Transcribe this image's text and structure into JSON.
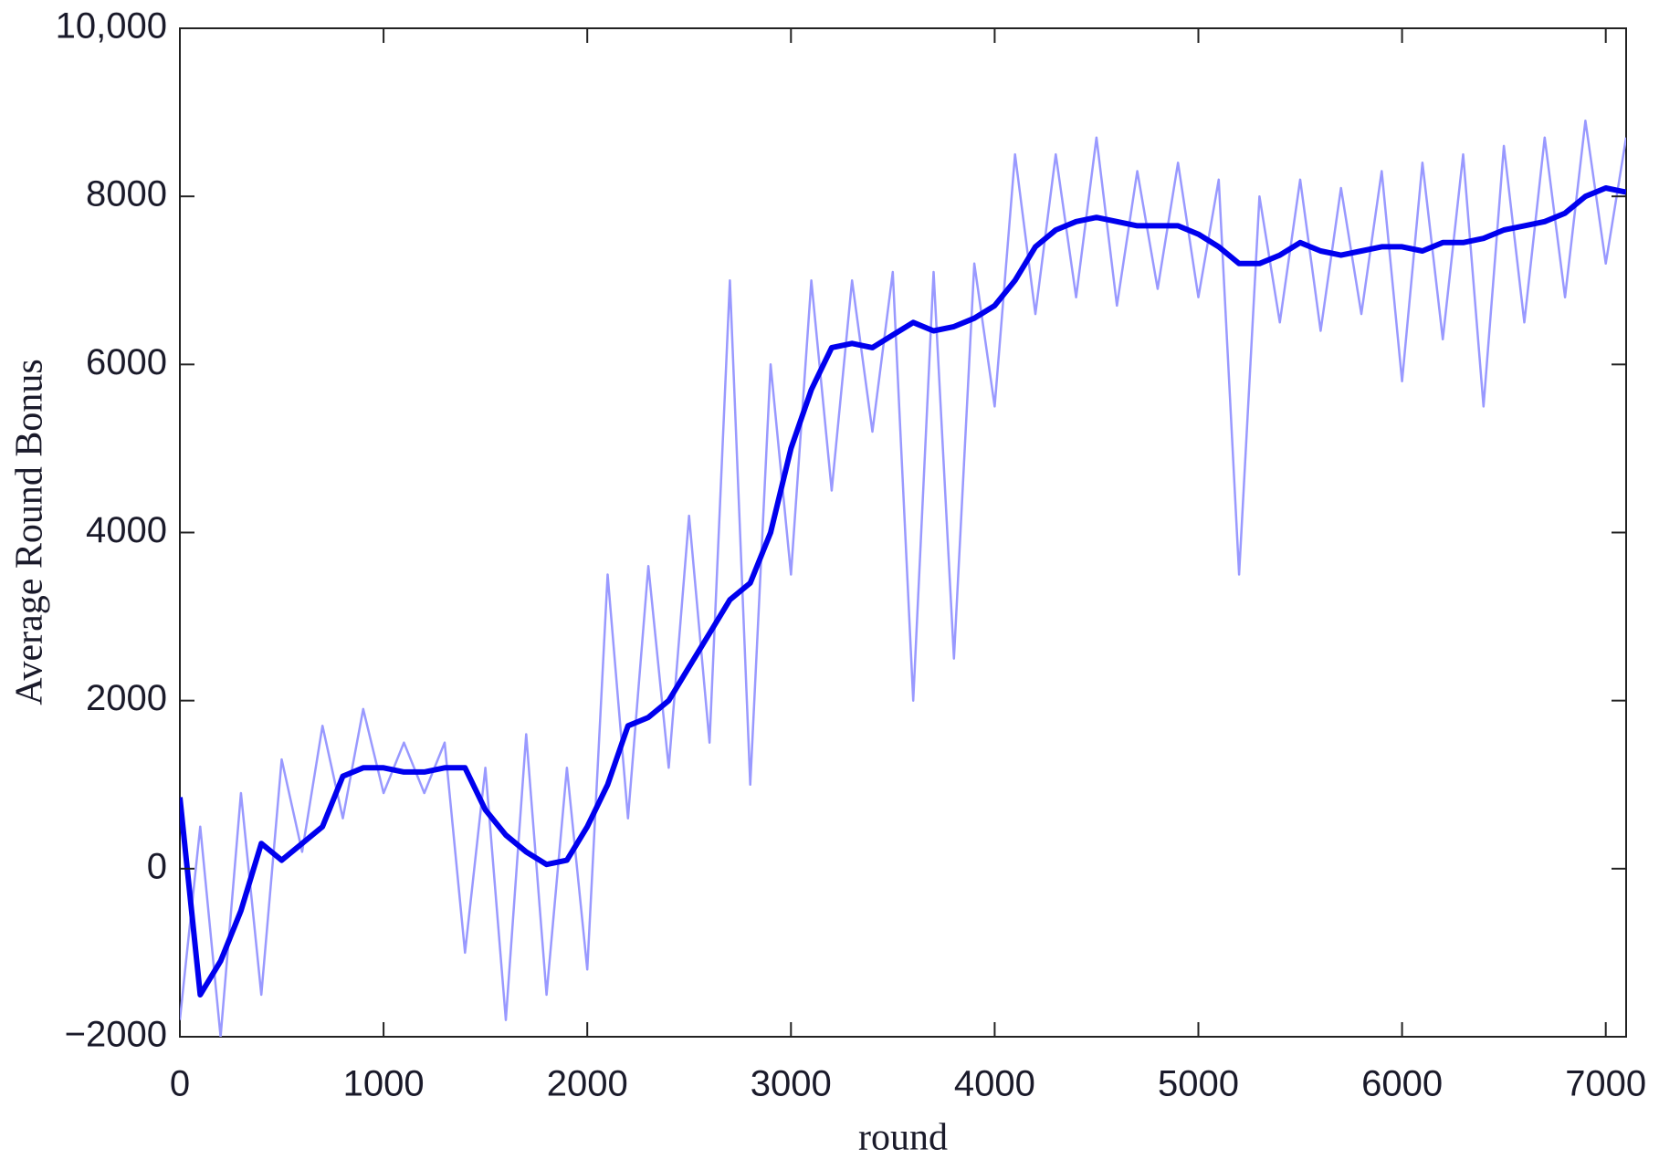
{
  "chart_data": {
    "type": "line",
    "xlabel": "round",
    "ylabel": "Average Round Bonus",
    "x": [
      0,
      100,
      200,
      300,
      400,
      500,
      600,
      700,
      800,
      900,
      1000,
      1100,
      1200,
      1300,
      1400,
      1500,
      1600,
      1700,
      1800,
      1900,
      2000,
      2100,
      2200,
      2300,
      2400,
      2500,
      2600,
      2700,
      2800,
      2900,
      3000,
      3100,
      3200,
      3300,
      3400,
      3500,
      3600,
      3700,
      3800,
      3900,
      4000,
      4100,
      4200,
      4300,
      4400,
      4500,
      4600,
      4700,
      4800,
      4900,
      5000,
      5100,
      5200,
      5300,
      5400,
      5500,
      5600,
      5700,
      5800,
      5900,
      6000,
      6100,
      6200,
      6300,
      6400,
      6500,
      6600,
      6700,
      6800,
      6900,
      7000,
      7100
    ],
    "series": [
      {
        "color": "#9999ff",
        "values": [
          -1800,
          500,
          -2000,
          900,
          -1500,
          1300,
          200,
          1700,
          600,
          1900,
          900,
          1500,
          900,
          1500,
          -1000,
          1200,
          -1800,
          1600,
          -1500,
          1200,
          -1200,
          3500,
          600,
          3600,
          1200,
          4200,
          1500,
          7000,
          1000,
          6000,
          3500,
          7000,
          4500,
          7000,
          5200,
          7100,
          2000,
          7100,
          2500,
          7200,
          5500,
          8500,
          6600,
          8500,
          6800,
          8700,
          6700,
          8300,
          6900,
          8400,
          6800,
          8200,
          3500,
          8000,
          6500,
          8200,
          6400,
          8100,
          6600,
          8300,
          5800,
          8400,
          6300,
          8500,
          5500,
          8600,
          6500,
          8700,
          6800,
          8900,
          7200,
          8700
        ]
      },
      {
        "color": "#0000ee",
        "values": [
          850,
          -1500,
          -1100,
          -500,
          300,
          100,
          300,
          500,
          1100,
          1200,
          1200,
          1150,
          1150,
          1200,
          1200,
          700,
          400,
          200,
          50,
          100,
          500,
          1000,
          1700,
          1800,
          2000,
          2400,
          2800,
          3200,
          3400,
          4000,
          5000,
          5700,
          6200,
          6250,
          6200,
          6350,
          6500,
          6400,
          6450,
          6550,
          6700,
          7000,
          7400,
          7600,
          7700,
          7750,
          7700,
          7650,
          7650,
          7650,
          7550,
          7400,
          7200,
          7200,
          7300,
          7450,
          7350,
          7300,
          7350,
          7400,
          7400,
          7350,
          7450,
          7450,
          7500,
          7600,
          7650,
          7700,
          7800,
          8000,
          8100,
          8050
        ]
      }
    ],
    "xlim": [
      0,
      7100
    ],
    "ylim": [
      -2000,
      10000
    ],
    "xticks": [
      0,
      1000,
      2000,
      3000,
      4000,
      5000,
      6000,
      7000
    ],
    "yticks": [
      {
        "value": -2000,
        "label": "−2000"
      },
      0,
      2000,
      4000,
      6000,
      8000,
      {
        "value": 10000,
        "label": "10,000"
      }
    ]
  }
}
